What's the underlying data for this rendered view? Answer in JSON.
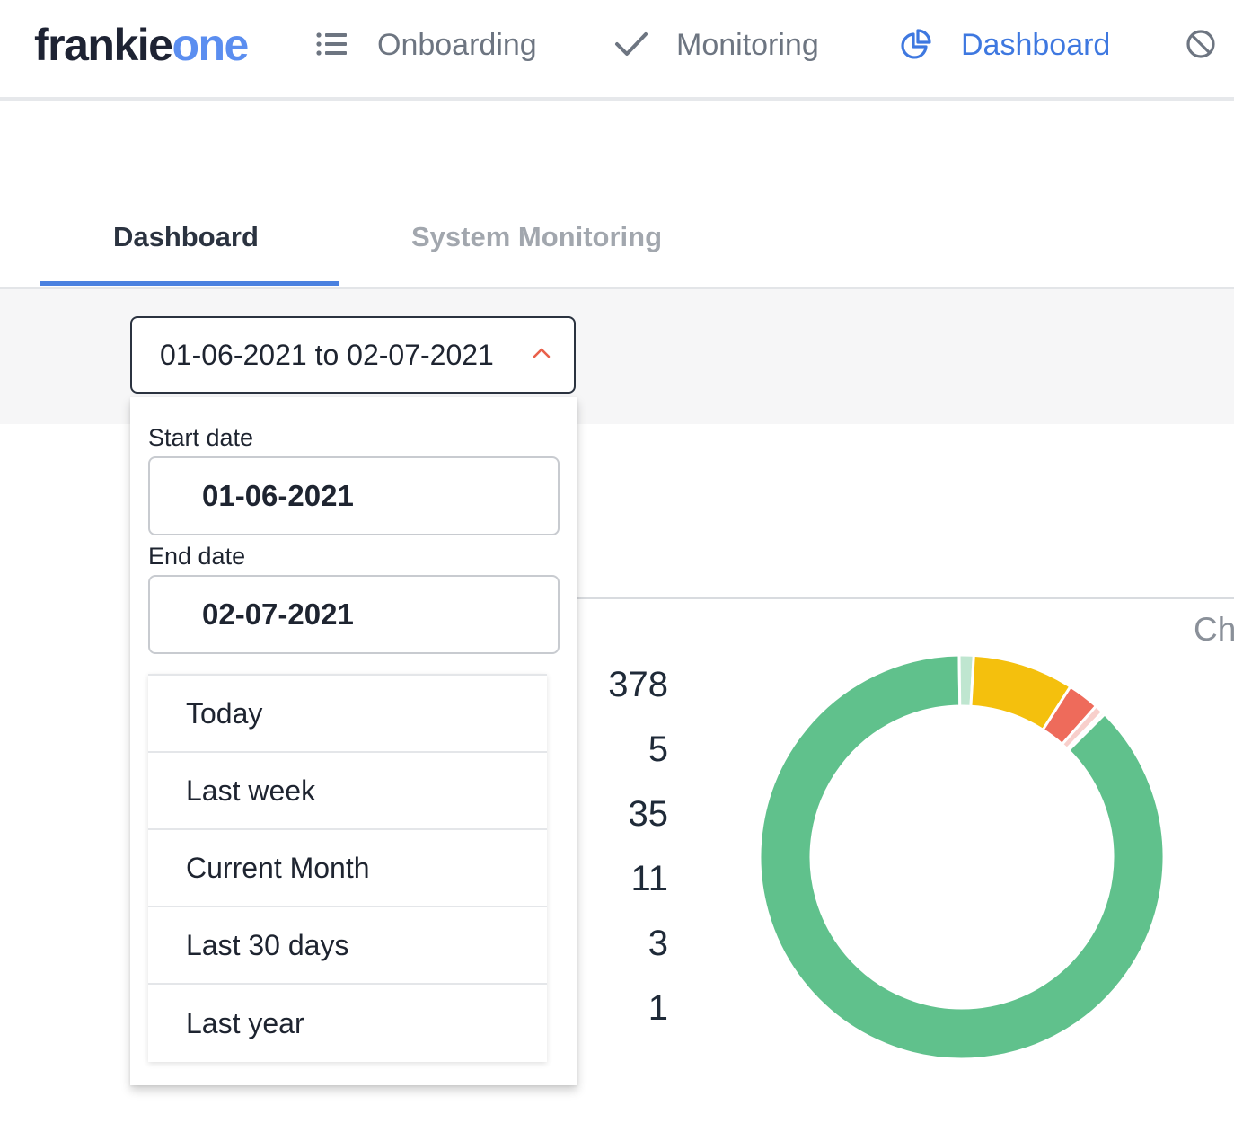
{
  "brand": {
    "part1": "frankie",
    "part2": "one"
  },
  "nav": {
    "onboarding": "Onboarding",
    "monitoring": "Monitoring",
    "dashboard": "Dashboard"
  },
  "tabs": {
    "dashboard": "Dashboard",
    "system_monitoring": "System Monitoring"
  },
  "date_range": {
    "display": "01-06-2021 to 02-07-2021",
    "start_label": "Start date",
    "start_value": "01-06-2021",
    "end_label": "End date",
    "end_value": "02-07-2021",
    "presets": [
      "Today",
      "Last week",
      "Current Month",
      "Last 30 days",
      "Last year"
    ]
  },
  "chart_header_partial": "Ch",
  "counts": [
    "378",
    "5",
    "35",
    "11",
    "3",
    "1"
  ],
  "colors": {
    "accent": "#3e78e0",
    "brand_blue": "#5b8ef0",
    "chevron": "#e9604b"
  },
  "chart_data": {
    "type": "pie",
    "values": [
      378,
      5,
      35,
      11,
      3,
      1
    ],
    "colors": [
      "#60c18c",
      "#bfe6d0",
      "#f4c00d",
      "#ee6b5b",
      "#f8cfcb",
      "#fbe3e1"
    ]
  }
}
